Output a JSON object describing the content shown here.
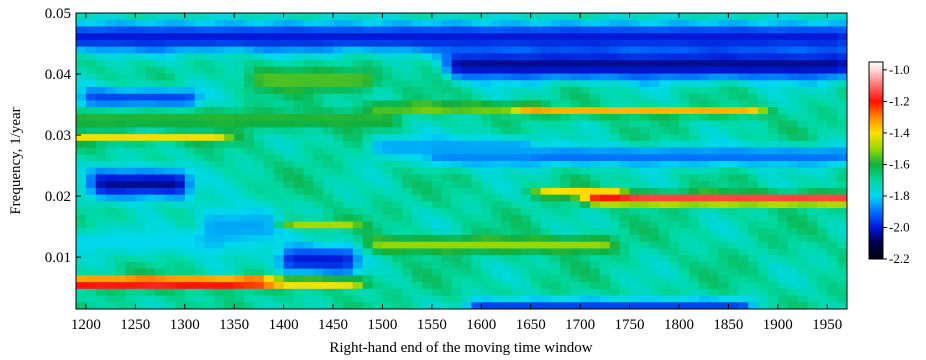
{
  "chart_data": {
    "type": "heatmap",
    "title": "",
    "xlabel": "Right-hand end of the moving time window",
    "ylabel": "Frequency, 1/year",
    "xlim": [
      1190,
      1970
    ],
    "ylim": [
      0.0015,
      0.05
    ],
    "x_ticks": [
      1200,
      1250,
      1300,
      1350,
      1400,
      1450,
      1500,
      1550,
      1600,
      1650,
      1700,
      1750,
      1800,
      1850,
      1900,
      1950
    ],
    "x_tick_labels": [
      "1200",
      "1250",
      "1300",
      "1350",
      "1400",
      "1450",
      "1500",
      "1550",
      "1600",
      "1650",
      "1700",
      "1750",
      "1800",
      "1850",
      "1900",
      "1950"
    ],
    "y_ticks": [
      0.01,
      0.02,
      0.03,
      0.04,
      0.05
    ],
    "y_tick_labels": [
      "0.01",
      "0.02",
      "0.03",
      "0.04",
      "0.05"
    ],
    "colorbar": {
      "range": [
        -2.2,
        -0.95
      ],
      "ticks": [
        -1.0,
        -1.2,
        -1.4,
        -1.6,
        -1.8,
        -2.0,
        -2.2
      ],
      "tick_labels": [
        "-1.0",
        "-1.2",
        "-1.4",
        "-1.6",
        "-1.8",
        "-2.0",
        "-2.2"
      ],
      "colormap_stops": [
        {
          "value": -2.2,
          "color": "#000010"
        },
        {
          "value": -2.1,
          "color": "#00004a"
        },
        {
          "value": -2.0,
          "color": "#0018d8"
        },
        {
          "value": -1.9,
          "color": "#0070ff"
        },
        {
          "value": -1.8,
          "color": "#00d8f0"
        },
        {
          "value": -1.7,
          "color": "#00d8a0"
        },
        {
          "value": -1.6,
          "color": "#10b040"
        },
        {
          "value": -1.5,
          "color": "#98d800"
        },
        {
          "value": -1.4,
          "color": "#ffe000"
        },
        {
          "value": -1.3,
          "color": "#ff8800"
        },
        {
          "value": -1.2,
          "color": "#ff1000"
        },
        {
          "value": -1.1,
          "color": "#ff7070"
        },
        {
          "value": -1.0,
          "color": "#ffd8d8"
        },
        {
          "value": -0.95,
          "color": "#ffffff"
        }
      ]
    },
    "base_level": -1.7,
    "features": [
      {
        "x": [
          1190,
          1370
        ],
        "y": 0.0058,
        "w": 0.0009,
        "level": -1.05
      },
      {
        "x": [
          1370,
          1465
        ],
        "y": 0.0058,
        "w": 0.0008,
        "level": -1.25
      },
      {
        "x": [
          1190,
          1330
        ],
        "y": 0.0295,
        "w": 0.0007,
        "level": -1.4
      },
      {
        "x": [
          1500,
          1650
        ],
        "y": 0.0345,
        "w": 0.0006,
        "level": -1.4
      },
      {
        "x": [
          1650,
          1870
        ],
        "y": 0.0338,
        "w": 0.0006,
        "level": -1.3
      },
      {
        "x": [
          1720,
          1970
        ],
        "y": 0.0195,
        "w": 0.0009,
        "level": -1.12
      },
      {
        "x": [
          1670,
          1730
        ],
        "y": 0.0205,
        "w": 0.0007,
        "level": -1.35
      },
      {
        "x": [
          1500,
          1720
        ],
        "y": 0.012,
        "w": 0.0013,
        "level": -1.5
      },
      {
        "x": [
          1400,
          1460
        ],
        "y": 0.0155,
        "w": 0.0006,
        "level": -1.45
      },
      {
        "x": [
          1190,
          1960
        ],
        "y": 0.046,
        "w": 0.0025,
        "level": -2.0
      },
      {
        "x": [
          1580,
          1960
        ],
        "y": 0.0415,
        "w": 0.0025,
        "level": -2.05
      },
      {
        "x": [
          1220,
          1290
        ],
        "y": 0.022,
        "w": 0.0025,
        "level": -2.05
      },
      {
        "x": [
          1210,
          1300
        ],
        "y": 0.036,
        "w": 0.0018,
        "level": -1.95
      },
      {
        "x": [
          1560,
          1960
        ],
        "y": 0.0265,
        "w": 0.0018,
        "level": -1.9
      },
      {
        "x": [
          1190,
          1330
        ],
        "y": 0.0125,
        "w": 0.0025,
        "level": -1.8
      },
      {
        "x": [
          1600,
          1860
        ],
        "y": 0.002,
        "w": 0.0012,
        "level": -1.95
      },
      {
        "x": [
          1410,
          1460
        ],
        "y": 0.0095,
        "w": 0.0025,
        "level": -2.0
      },
      {
        "x": [
          1330,
          1380
        ],
        "y": 0.015,
        "w": 0.004,
        "level": -1.85
      },
      {
        "x": [
          1500,
          1640
        ],
        "y": 0.028,
        "w": 0.002,
        "level": -1.85
      },
      {
        "x": [
          1380,
          1480
        ],
        "y": 0.039,
        "w": 0.002,
        "level": -1.55
      },
      {
        "x": [
          1190,
          1500
        ],
        "y": 0.0325,
        "w": 0.0016,
        "level": -1.58
      }
    ]
  }
}
